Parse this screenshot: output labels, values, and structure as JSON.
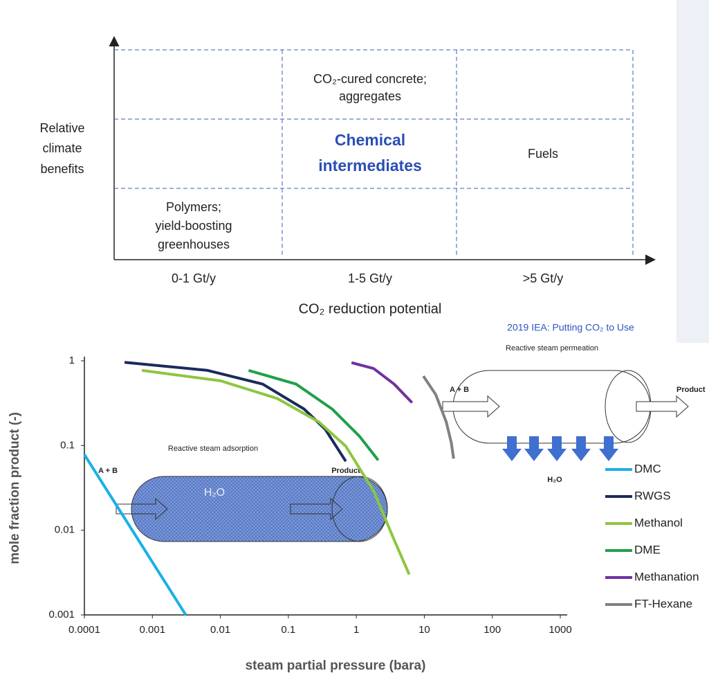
{
  "diagram": {
    "y_axis_label": [
      "Relative",
      "climate",
      "benefits"
    ],
    "x_axis_label": "CO₂ reduction potential",
    "columns": [
      "0-1 Gt/y",
      "1-5 Gt/y",
      ">5 Gt/y"
    ],
    "cells": {
      "concrete": [
        "CO₂-cured concrete;",
        "aggregates"
      ],
      "chemicals": [
        "Chemical",
        "intermediates"
      ],
      "fuels": [
        "Fuels"
      ],
      "polymers": [
        "Polymers;",
        "yield-boosting",
        "greenhouses"
      ]
    },
    "source": "2019 IEA: Putting CO₂ to Use"
  },
  "insets": {
    "adsorption": {
      "title": "Reactive steam adsorption",
      "input": "A + B",
      "inside": "H₂O",
      "output": "Product"
    },
    "permeation": {
      "title": "Reactive steam permeation",
      "input": "A + B",
      "output": "Product",
      "permeate": "H₂O"
    }
  },
  "chart_data": {
    "type": "line",
    "xlabel": "steam partial pressure (bara)",
    "ylabel": "mole fraction product (-)",
    "xscale": "log",
    "yscale": "log",
    "xlim": [
      0.0001,
      1000
    ],
    "ylim": [
      0.001,
      1
    ],
    "xticks": [
      0.0001,
      0.001,
      0.01,
      0.1,
      1,
      10,
      100,
      1000
    ],
    "yticks": [
      0.001,
      0.01,
      0.1,
      1
    ],
    "legend": "right",
    "series": [
      {
        "name": "DMC",
        "color": "#1ab0e8",
        "x": [
          0.0001,
          0.0031
        ],
        "values": [
          0.078,
          0.001
        ]
      },
      {
        "name": "RWGS",
        "color": "#1b2a5c",
        "x": [
          0.00039,
          0.0065,
          0.042,
          0.17,
          0.35,
          0.7
        ],
        "values": [
          0.96,
          0.77,
          0.53,
          0.27,
          0.155,
          0.065
        ]
      },
      {
        "name": "Methanol",
        "color": "#8dc63f",
        "x": [
          0.0007,
          0.01,
          0.068,
          0.28,
          0.7,
          1.8,
          3.6,
          6
        ],
        "values": [
          0.77,
          0.58,
          0.36,
          0.19,
          0.098,
          0.029,
          0.0077,
          0.003
        ]
      },
      {
        "name": "DME",
        "color": "#1fa04a",
        "x": [
          0.026,
          0.13,
          0.44,
          1.1,
          2.1
        ],
        "values": [
          0.77,
          0.53,
          0.27,
          0.13,
          0.067
        ]
      },
      {
        "name": "Methanation",
        "color": "#7030a0",
        "x": [
          0.85,
          1.8,
          3.6,
          6.6
        ],
        "values": [
          0.95,
          0.81,
          0.53,
          0.32
        ]
      },
      {
        "name": "FT-Hexane",
        "color": "#808080",
        "x": [
          9.7,
          14.7,
          21,
          25,
          27
        ],
        "values": [
          0.66,
          0.4,
          0.19,
          0.107,
          0.07
        ]
      }
    ]
  }
}
